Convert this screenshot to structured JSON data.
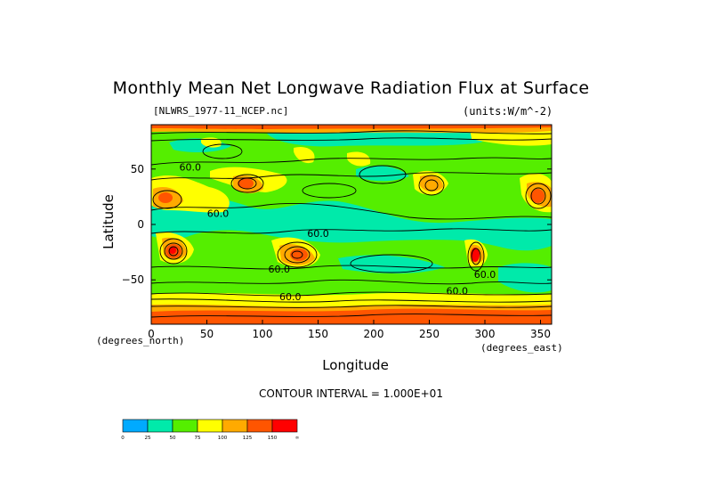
{
  "chart_data": {
    "type": "heatmap",
    "title": "Monthly Mean Net Longwave Radiation Flux at Surface",
    "file_label": "[NLWRS_1977-11_NCEP.nc]",
    "units_label": "(units:W/m^-2)",
    "xlabel": "Longitude",
    "ylabel": "Latitude",
    "x_unit_label": "(degrees_east)",
    "y_unit_label": "(degrees_north)",
    "xlim": [
      0,
      360
    ],
    "ylim": [
      -90,
      90
    ],
    "x_ticks": [
      0,
      50,
      100,
      150,
      200,
      250,
      300,
      350
    ],
    "y_ticks": [
      -50,
      0,
      50
    ],
    "contour_interval_text": "CONTOUR INTERVAL = 1.000E+01",
    "contour_labels": [
      {
        "text": "60.0",
        "lon": 35,
        "lat": 52
      },
      {
        "text": "60.0",
        "lon": 60,
        "lat": 10
      },
      {
        "text": "60.0",
        "lon": 150,
        "lat": -8
      },
      {
        "text": "60.0",
        "lon": 115,
        "lat": -40
      },
      {
        "text": "60.0",
        "lon": 125,
        "lat": -65
      },
      {
        "text": "60.0",
        "lon": 275,
        "lat": -60
      },
      {
        "text": "60.0",
        "lon": 300,
        "lat": -45
      }
    ],
    "colorbar": {
      "levels": [
        "0",
        "25",
        "50",
        "75",
        "100",
        "125",
        "150",
        "∞"
      ],
      "colors": [
        "#00aaff",
        "#00eaaa",
        "#55ee00",
        "#ffff00",
        "#ffaa00",
        "#ff5500",
        "#ff0000"
      ]
    }
  }
}
